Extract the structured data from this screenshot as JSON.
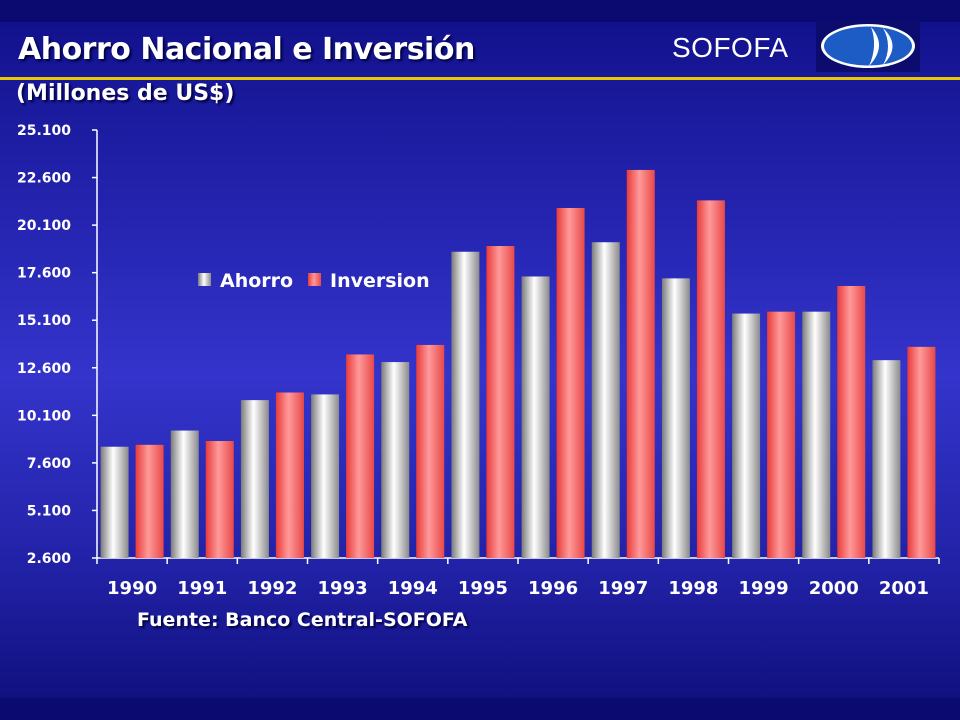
{
  "header": {
    "title": "Ahorro Nacional e Inversión",
    "subtitle": "(Millones de US$)",
    "brand": "SOFOFA"
  },
  "footer": {
    "source": "Fuente: Banco Central-SOFOFA"
  },
  "colors": {
    "ahorro": "#d8d8d8",
    "inversion": "#ff5a5a",
    "title_rule": "#e8c800",
    "logo_blue": "#1c5cc4"
  },
  "chart_data": {
    "type": "bar",
    "categories": [
      "1990",
      "1991",
      "1992",
      "1993",
      "1994",
      "1995",
      "1996",
      "1997",
      "1998",
      "1999",
      "2000",
      "2001"
    ],
    "series": [
      {
        "name": "Ahorro",
        "values": [
          8450,
          9300,
          10900,
          11200,
          12900,
          18700,
          17400,
          19200,
          17300,
          15450,
          15550,
          13000
        ]
      },
      {
        "name": "Inversion",
        "values": [
          8550,
          8750,
          11300,
          13300,
          13800,
          19000,
          21000,
          23000,
          21400,
          15550,
          16900,
          13700
        ]
      }
    ],
    "yticks": [
      "25.100",
      "22.600",
      "20.100",
      "17.600",
      "15.100",
      "12.600",
      "10.100",
      "7.600",
      "5.100",
      "2.600"
    ],
    "ylim": [
      2600,
      25100
    ],
    "legend_position": "top-left inside plot",
    "grid": false
  }
}
